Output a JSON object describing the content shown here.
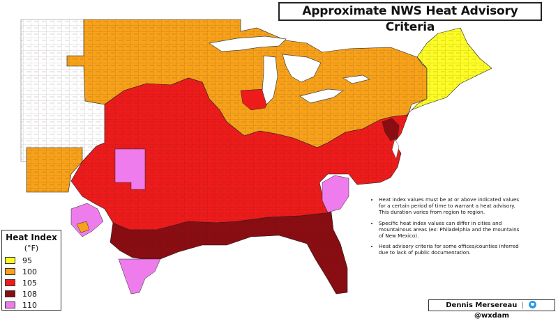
{
  "title": "Approximate NWS Heat Advisory Criteria",
  "legend": {
    "title": "Heat Index",
    "unit": "(°F)",
    "items": [
      {
        "label": "95",
        "color": "#fdfd25"
      },
      {
        "label": "100",
        "color": "#f7a21a"
      },
      {
        "label": "105",
        "color": "#ee1b1b"
      },
      {
        "label": "108",
        "color": "#8a0d12"
      },
      {
        "label": "110",
        "color": "#ee7cec"
      }
    ]
  },
  "notes": [
    "Heat index values must be at or above indicated values for a certain period of time to warrant a heat advisory. This duration varies from region to region.",
    "Specific heat index values can differ in cities and mountainous areas (ex: Philadelphia and the mountains of New Mexico).",
    "Heat advisory criteria for some offices/counties inferred due to lack of public documentation."
  ],
  "credit": {
    "author": "Dennis Mersereau",
    "separator": "|",
    "handle": "@wxdam"
  },
  "colors": {
    "no_data": "#ffffff",
    "water": "#ffffff",
    "county_border": "#5a1f1f",
    "outline": "#222222"
  }
}
